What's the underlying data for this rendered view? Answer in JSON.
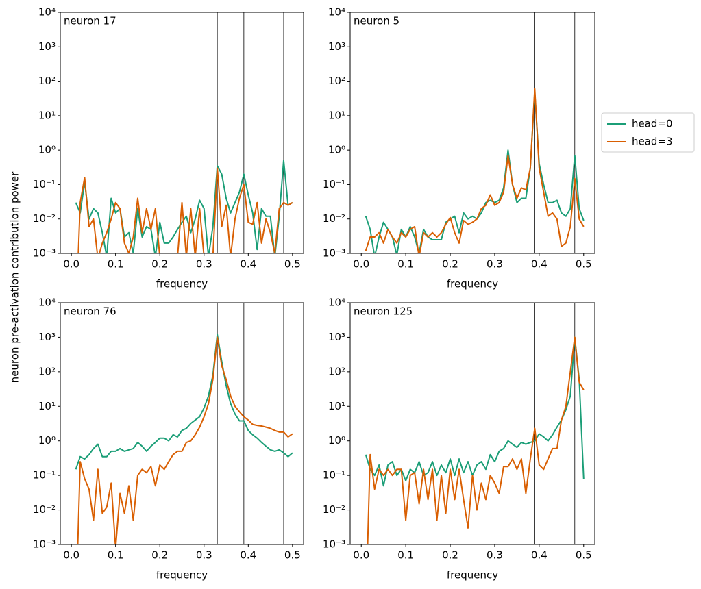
{
  "ylabel": "neuron pre-activation contribution power",
  "chart_data": [
    {
      "type": "line",
      "annotation": "neuron 17",
      "xlabel": "frequency",
      "log_y": true,
      "xlim": [
        -0.025,
        0.525
      ],
      "ylim": [
        0.001,
        10000
      ],
      "xticks": [
        {
          "value": 0,
          "label": "0.0"
        },
        0.1,
        0.2,
        0.3,
        0.4,
        0.5
      ],
      "yticks": [
        {
          "value": 0.001,
          "label": "10⁻³"
        },
        {
          "value": 0.01,
          "label": "10⁻²"
        },
        {
          "value": 0.1,
          "label": "10⁻¹"
        },
        {
          "value": 1,
          "label": "10⁰"
        },
        {
          "value": 10,
          "label": "10¹"
        },
        {
          "value": 100,
          "label": "10²"
        },
        {
          "value": 1000,
          "label": "10³"
        },
        {
          "value": 10000,
          "label": "10⁴"
        }
      ],
      "vlines": [
        0.33,
        0.39,
        0.48
      ],
      "x": [
        0.01,
        0.02,
        0.03,
        0.04,
        0.05,
        0.06,
        0.07,
        0.08,
        0.09,
        0.1,
        0.11,
        0.12,
        0.13,
        0.14,
        0.15,
        0.16,
        0.17,
        0.18,
        0.19,
        0.2,
        0.21,
        0.22,
        0.23,
        0.24,
        0.25,
        0.26,
        0.27,
        0.28,
        0.29,
        0.3,
        0.31,
        0.32,
        0.33,
        0.34,
        0.35,
        0.36,
        0.37,
        0.38,
        0.39,
        0.4,
        0.41,
        0.42,
        0.43,
        0.44,
        0.45,
        0.46,
        0.47,
        0.48,
        0.49,
        0.5
      ],
      "series": [
        {
          "color": "#1b9e77",
          "values": [
            0.03,
            0.015,
            0.12,
            0.01,
            0.02,
            0.015,
            0.004,
            0.0008,
            0.04,
            0.015,
            0.02,
            0.003,
            0.004,
            0.001,
            0.02,
            0.003,
            0.006,
            0.005,
            0.0008,
            0.008,
            0.002,
            0.002,
            0.003,
            0.005,
            0.008,
            0.012,
            0.004,
            0.01,
            0.035,
            0.02,
            0.0008,
            0.006,
            0.35,
            0.2,
            0.04,
            0.015,
            0.03,
            0.06,
            0.2,
            0.05,
            0.015,
            0.0013,
            0.02,
            0.012,
            0.012,
            0.0008,
            0.012,
            0.5,
            0.025,
            0.03
          ]
        },
        {
          "color": "#d95f02",
          "values": [
            1e-05,
            0.03,
            0.16,
            0.006,
            0.01,
            0.0007,
            0.002,
            0.004,
            0.01,
            0.03,
            0.02,
            0.002,
            0.001,
            0.003,
            0.04,
            0.004,
            0.02,
            0.005,
            0.02,
            0.0008,
            0.0008,
            0.0008,
            0.0008,
            0.0008,
            0.03,
            0.0008,
            0.02,
            0.0008,
            0.02,
            0.0008,
            0.0008,
            0.0008,
            0.3,
            0.006,
            0.025,
            0.0008,
            0.01,
            0.04,
            0.1,
            0.008,
            0.007,
            0.03,
            0.002,
            0.01,
            0.004,
            0.001,
            0.02,
            0.03,
            0.025,
            0.03
          ]
        }
      ]
    },
    {
      "type": "line",
      "annotation": "neuron 5",
      "xlabel": "frequency",
      "log_y": true,
      "xlim": [
        -0.025,
        0.525
      ],
      "ylim": [
        0.001,
        10000
      ],
      "xticks": [
        {
          "value": 0,
          "label": "0.0"
        },
        0.1,
        0.2,
        0.3,
        0.4,
        0.5
      ],
      "yticks": [
        {
          "value": 0.001,
          "label": "10⁻³"
        },
        {
          "value": 0.01,
          "label": "10⁻²"
        },
        {
          "value": 0.1,
          "label": "10⁻¹"
        },
        {
          "value": 1,
          "label": "10⁰"
        },
        {
          "value": 10,
          "label": "10¹"
        },
        {
          "value": 100,
          "label": "10²"
        },
        {
          "value": 1000,
          "label": "10³"
        },
        {
          "value": 10000,
          "label": "10⁴"
        }
      ],
      "vlines": [
        0.33,
        0.39,
        0.48
      ],
      "x": [
        0.01,
        0.02,
        0.03,
        0.04,
        0.05,
        0.06,
        0.07,
        0.08,
        0.09,
        0.1,
        0.11,
        0.12,
        0.13,
        0.14,
        0.15,
        0.16,
        0.17,
        0.18,
        0.19,
        0.2,
        0.21,
        0.22,
        0.23,
        0.24,
        0.25,
        0.26,
        0.27,
        0.28,
        0.29,
        0.3,
        0.31,
        0.32,
        0.33,
        0.34,
        0.35,
        0.36,
        0.37,
        0.38,
        0.39,
        0.4,
        0.41,
        0.42,
        0.43,
        0.44,
        0.45,
        0.46,
        0.47,
        0.48,
        0.49,
        0.5
      ],
      "series": [
        {
          "name": "head=0",
          "color": "#1b9e77",
          "values": [
            0.012,
            0.005,
            0.0008,
            0.003,
            0.008,
            0.005,
            0.003,
            0.0009,
            0.005,
            0.003,
            0.006,
            0.003,
            0.001,
            0.005,
            0.003,
            0.0025,
            0.0025,
            0.0025,
            0.008,
            0.01,
            0.012,
            0.004,
            0.015,
            0.01,
            0.012,
            0.01,
            0.015,
            0.03,
            0.035,
            0.03,
            0.035,
            0.08,
            1.0,
            0.1,
            0.03,
            0.04,
            0.04,
            0.3,
            50,
            0.4,
            0.1,
            0.03,
            0.03,
            0.035,
            0.015,
            0.012,
            0.02,
            0.7,
            0.02,
            0.009
          ]
        },
        {
          "name": "head=3",
          "color": "#d95f02",
          "values": [
            0.0012,
            0.003,
            0.003,
            0.004,
            0.002,
            0.005,
            0.003,
            0.002,
            0.004,
            0.003,
            0.005,
            0.006,
            0.0008,
            0.004,
            0.003,
            0.004,
            0.003,
            0.004,
            0.007,
            0.011,
            0.004,
            0.002,
            0.009,
            0.007,
            0.008,
            0.01,
            0.02,
            0.025,
            0.05,
            0.025,
            0.03,
            0.06,
            0.7,
            0.1,
            0.04,
            0.08,
            0.07,
            0.3,
            60,
            0.3,
            0.06,
            0.012,
            0.015,
            0.01,
            0.0016,
            0.002,
            0.006,
            0.15,
            0.01,
            0.006
          ]
        }
      ]
    },
    {
      "type": "line",
      "annotation": "neuron 76",
      "xlabel": "frequency",
      "log_y": true,
      "xlim": [
        -0.025,
        0.525
      ],
      "ylim": [
        0.001,
        10000
      ],
      "xticks": [
        {
          "value": 0,
          "label": "0.0"
        },
        0.1,
        0.2,
        0.3,
        0.4,
        0.5
      ],
      "yticks": [
        {
          "value": 0.001,
          "label": "10⁻³"
        },
        {
          "value": 0.01,
          "label": "10⁻²"
        },
        {
          "value": 0.1,
          "label": "10⁻¹"
        },
        {
          "value": 1,
          "label": "10⁰"
        },
        {
          "value": 10,
          "label": "10¹"
        },
        {
          "value": 100,
          "label": "10²"
        },
        {
          "value": 1000,
          "label": "10³"
        },
        {
          "value": 10000,
          "label": "10⁴"
        }
      ],
      "vlines": [
        0.33,
        0.39,
        0.48
      ],
      "x": [
        0.01,
        0.02,
        0.03,
        0.04,
        0.05,
        0.06,
        0.07,
        0.08,
        0.09,
        0.1,
        0.11,
        0.12,
        0.13,
        0.14,
        0.15,
        0.16,
        0.17,
        0.18,
        0.19,
        0.2,
        0.21,
        0.22,
        0.23,
        0.24,
        0.25,
        0.26,
        0.27,
        0.28,
        0.29,
        0.3,
        0.31,
        0.32,
        0.33,
        0.34,
        0.35,
        0.36,
        0.37,
        0.38,
        0.39,
        0.4,
        0.41,
        0.42,
        0.43,
        0.44,
        0.45,
        0.46,
        0.47,
        0.48,
        0.49,
        0.5
      ],
      "series": [
        {
          "color": "#1b9e77",
          "values": [
            0.15,
            0.35,
            0.3,
            0.4,
            0.6,
            0.8,
            0.35,
            0.35,
            0.5,
            0.5,
            0.6,
            0.5,
            0.55,
            0.6,
            0.9,
            0.7,
            0.5,
            0.7,
            0.9,
            1.2,
            1.2,
            1.0,
            1.5,
            1.3,
            2.0,
            2.3,
            3.2,
            4.0,
            5.0,
            9,
            20,
            80,
            1200,
            200,
            40,
            12,
            6,
            3.8,
            3.8,
            2.0,
            1.5,
            1.2,
            0.9,
            0.7,
            0.55,
            0.5,
            0.55,
            0.45,
            0.35,
            0.45
          ]
        },
        {
          "color": "#d95f02",
          "values": [
            1e-05,
            0.25,
            0.08,
            0.04,
            0.005,
            0.15,
            0.008,
            0.012,
            0.06,
            0.0008,
            0.03,
            0.008,
            0.05,
            0.005,
            0.1,
            0.15,
            0.12,
            0.18,
            0.05,
            0.2,
            0.15,
            0.25,
            0.4,
            0.5,
            0.5,
            0.9,
            1.0,
            1.5,
            2.5,
            5,
            12,
            60,
            1000,
            150,
            60,
            20,
            10,
            7,
            5,
            4,
            3,
            2.8,
            2.7,
            2.5,
            2.3,
            2.0,
            1.8,
            1.8,
            1.3,
            1.6
          ]
        }
      ]
    },
    {
      "type": "line",
      "annotation": "neuron 125",
      "xlabel": "frequency",
      "log_y": true,
      "xlim": [
        -0.025,
        0.525
      ],
      "ylim": [
        0.001,
        10000
      ],
      "xticks": [
        {
          "value": 0,
          "label": "0.0"
        },
        0.1,
        0.2,
        0.3,
        0.4,
        0.5
      ],
      "yticks": [
        {
          "value": 0.001,
          "label": "10⁻³"
        },
        {
          "value": 0.01,
          "label": "10⁻²"
        },
        {
          "value": 0.1,
          "label": "10⁻¹"
        },
        {
          "value": 1,
          "label": "10⁰"
        },
        {
          "value": 10,
          "label": "10¹"
        },
        {
          "value": 100,
          "label": "10²"
        },
        {
          "value": 1000,
          "label": "10³"
        },
        {
          "value": 10000,
          "label": "10⁴"
        }
      ],
      "vlines": [
        0.33,
        0.39,
        0.48
      ],
      "x": [
        0.01,
        0.02,
        0.03,
        0.04,
        0.05,
        0.06,
        0.07,
        0.08,
        0.09,
        0.1,
        0.11,
        0.12,
        0.13,
        0.14,
        0.15,
        0.16,
        0.17,
        0.18,
        0.19,
        0.2,
        0.21,
        0.22,
        0.23,
        0.24,
        0.25,
        0.26,
        0.27,
        0.28,
        0.29,
        0.3,
        0.31,
        0.32,
        0.33,
        0.34,
        0.35,
        0.36,
        0.37,
        0.38,
        0.39,
        0.4,
        0.41,
        0.42,
        0.43,
        0.44,
        0.45,
        0.46,
        0.47,
        0.48,
        0.49,
        0.5
      ],
      "series": [
        {
          "color": "#1b9e77",
          "values": [
            0.4,
            0.15,
            0.1,
            0.2,
            0.05,
            0.2,
            0.25,
            0.1,
            0.15,
            0.07,
            0.15,
            0.12,
            0.25,
            0.1,
            0.12,
            0.25,
            0.1,
            0.2,
            0.12,
            0.3,
            0.1,
            0.3,
            0.12,
            0.25,
            0.1,
            0.2,
            0.25,
            0.15,
            0.4,
            0.25,
            0.5,
            0.6,
            1.0,
            0.8,
            0.65,
            0.9,
            0.8,
            0.9,
            1.0,
            1.6,
            1.3,
            1.0,
            1.5,
            2.5,
            4,
            8,
            20,
            1000,
            60,
            0.08
          ]
        },
        {
          "color": "#d95f02",
          "values": [
            1e-05,
            0.4,
            0.04,
            0.15,
            0.1,
            0.15,
            0.1,
            0.15,
            0.15,
            0.005,
            0.1,
            0.12,
            0.015,
            0.15,
            0.02,
            0.15,
            0.005,
            0.1,
            0.008,
            0.15,
            0.02,
            0.15,
            0.02,
            0.003,
            0.1,
            0.01,
            0.06,
            0.02,
            0.1,
            0.06,
            0.03,
            0.18,
            0.18,
            0.3,
            0.15,
            0.3,
            0.03,
            0.3,
            2.3,
            0.2,
            0.15,
            0.3,
            0.6,
            0.6,
            4,
            10,
            100,
            1000,
            50,
            30
          ]
        }
      ]
    }
  ]
}
